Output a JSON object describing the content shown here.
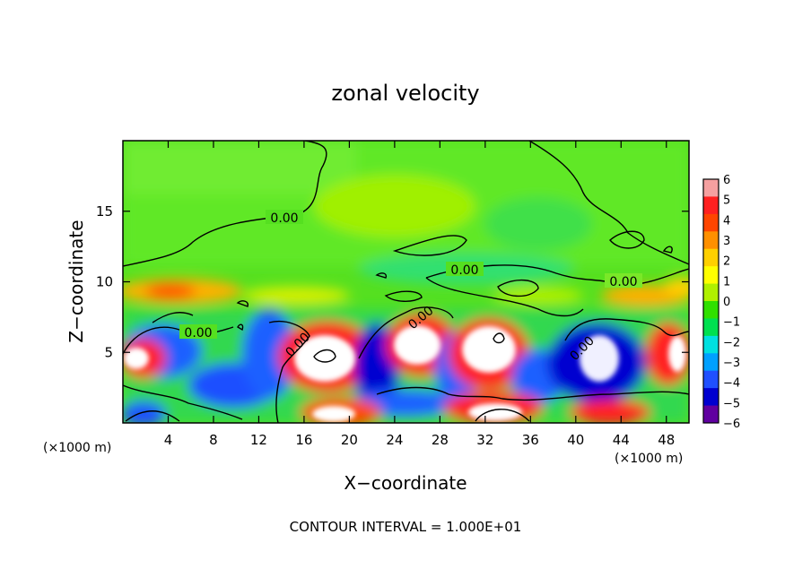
{
  "chart_data": {
    "type": "heatmap",
    "title": "zonal velocity",
    "xlabel": "X−coordinate",
    "ylabel": "Z−coordinate",
    "x_unit": "(×1000 m)",
    "x_ticks": [
      4,
      8,
      12,
      16,
      20,
      24,
      28,
      32,
      36,
      40,
      44,
      48
    ],
    "y_ticks": [
      5,
      10,
      15
    ],
    "xlim": [
      0,
      50
    ],
    "ylim": [
      0,
      20
    ],
    "footer": "CONTOUR INTERVAL = 1.000E+01",
    "contour_label": "0.00",
    "colorbar": {
      "ticks": [
        "6",
        "5",
        "4",
        "3",
        "2",
        "1",
        "0",
        "−1",
        "−2",
        "−3",
        "−4",
        "−5",
        "−6"
      ],
      "range": [
        -6,
        6
      ],
      "colors": [
        "#f5a0a0",
        "#ff2020",
        "#ff4500",
        "#ff9000",
        "#ffd000",
        "#ffff00",
        "#b0f000",
        "#30e000",
        "#00e050",
        "#00e0e0",
        "#00a0ff",
        "#2050ff",
        "#0000d0",
        "#6000a0"
      ]
    },
    "grid": false,
    "legend": "right"
  }
}
